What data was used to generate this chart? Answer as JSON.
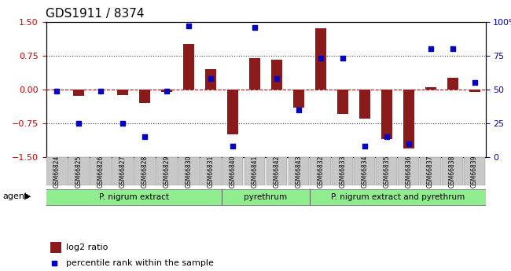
{
  "title": "GDS1911 / 8374",
  "samples": [
    "GSM66824",
    "GSM66825",
    "GSM66826",
    "GSM66827",
    "GSM66828",
    "GSM66829",
    "GSM66830",
    "GSM66831",
    "GSM66840",
    "GSM66841",
    "GSM66842",
    "GSM66843",
    "GSM66832",
    "GSM66833",
    "GSM66834",
    "GSM66835",
    "GSM66836",
    "GSM66837",
    "GSM66838",
    "GSM66839"
  ],
  "log2_ratio": [
    0.0,
    -0.15,
    0.0,
    -0.12,
    -0.3,
    -0.05,
    1.0,
    0.45,
    -1.0,
    0.7,
    0.65,
    -0.4,
    1.35,
    -0.55,
    -0.65,
    -1.1,
    -1.3,
    0.05,
    0.25,
    -0.05
  ],
  "pct_rank": [
    49,
    25,
    49,
    25,
    15,
    49,
    97,
    58,
    8,
    96,
    58,
    35,
    73,
    73,
    8,
    15,
    10,
    80,
    80,
    55
  ],
  "groups": [
    {
      "label": "P. nigrum extract",
      "start": 0,
      "end": 7
    },
    {
      "label": "pyrethrum",
      "start": 8,
      "end": 11
    },
    {
      "label": "P. nigrum extract and pyrethrum",
      "start": 12,
      "end": 19
    }
  ],
  "ylim_left": [
    -1.5,
    1.5
  ],
  "yticks_left": [
    -1.5,
    -0.75,
    0.0,
    0.75,
    1.5
  ],
  "ylim_right": [
    0,
    100
  ],
  "yticks_right": [
    0,
    25,
    50,
    75,
    100
  ],
  "bar_color": "#8B1A1A",
  "dot_color": "#0000CD",
  "hline_color": "#CC0000",
  "grid_color": "#333333",
  "bg_color": "#ffffff",
  "group_colors": [
    "#c8e6c9",
    "#a5d6a7",
    "#81c784"
  ],
  "group_bg": "#90EE90",
  "xlabel_area_color": "#d3d3d3",
  "legend_bar_label": "log2 ratio",
  "legend_dot_label": "percentile rank within the sample"
}
